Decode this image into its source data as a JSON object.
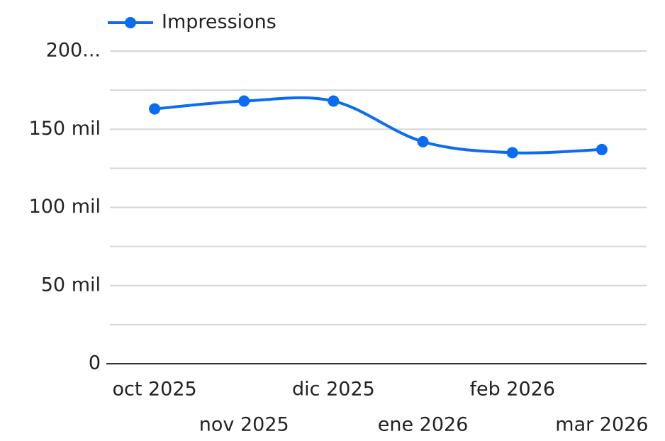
{
  "chart_data": {
    "type": "line",
    "categories": [
      "oct 2025",
      "nov 2025",
      "dic 2025",
      "ene 2026",
      "feb 2026",
      "mar 2026"
    ],
    "series": [
      {
        "name": "Impressions",
        "color": "#0b6cf2",
        "values": [
          163000,
          168000,
          168000,
          142000,
          135000,
          137000
        ]
      }
    ],
    "ylim": [
      0,
      200000
    ],
    "yticks": [
      0,
      {
        "value": 50000,
        "label": "50 mil"
      },
      {
        "value": 100000,
        "label": "100 mil"
      },
      {
        "value": 150000,
        "label": "150 mil"
      },
      {
        "value": 200000,
        "label": "200..."
      }
    ],
    "minor_yticks": [
      25000,
      75000,
      125000,
      175000
    ],
    "grid": true,
    "smooth": true,
    "legend": "top-left"
  }
}
